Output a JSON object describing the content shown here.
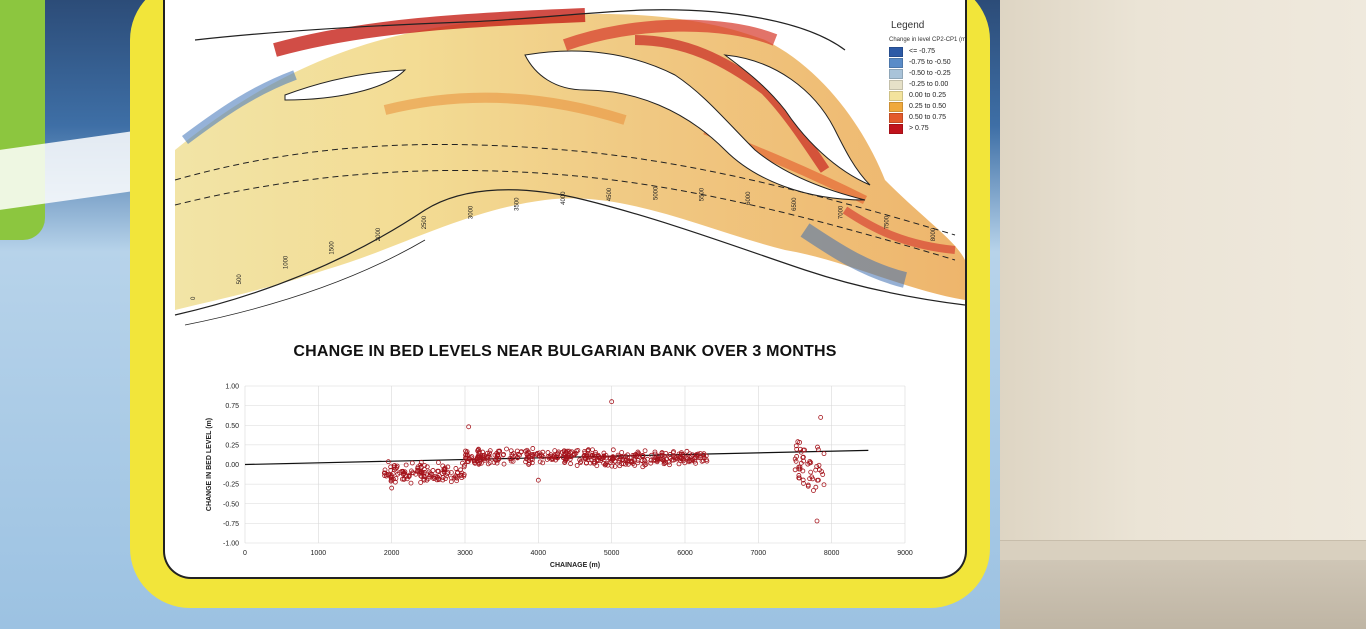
{
  "legend": {
    "title": "Legend",
    "subtitle": "Change in level CP2-CP1 (m)",
    "items": [
      {
        "label": "<= -0.75",
        "color": "#2c5aa6"
      },
      {
        "label": "-0.75 to -0.50",
        "color": "#5a8cc8"
      },
      {
        "label": "-0.50 to -0.25",
        "color": "#a9c3d9"
      },
      {
        "label": "-0.25 to 0.00",
        "color": "#e6e1c8"
      },
      {
        "label": "0.00 to 0.25",
        "color": "#f3e39d"
      },
      {
        "label": "0.25 to 0.50",
        "color": "#f0a93c"
      },
      {
        "label": "0.50 to 0.75",
        "color": "#e35a2b"
      },
      {
        "label": "> 0.75",
        "color": "#c1131c"
      }
    ]
  },
  "map_chainage_labels": [
    "0",
    "500",
    "1000",
    "1500",
    "2000",
    "2500",
    "3000",
    "3500",
    "4000",
    "4500",
    "5000",
    "5500",
    "6000",
    "6500",
    "7000",
    "7500",
    "8000"
  ],
  "chart_title": "CHANGE IN BED LEVELS NEAR BULGARIAN BANK OVER 3 MONTHS",
  "chart_data": {
    "type": "scatter",
    "xlabel": "CHAINAGE (m)",
    "ylabel": "CHANGE IN BED LEVEL (m)",
    "xlim": [
      0,
      9000
    ],
    "ylim": [
      -1.0,
      1.0
    ],
    "x_ticks": [
      "0",
      "1000",
      "2000",
      "3000",
      "4000",
      "5000",
      "6000",
      "7000",
      "8000",
      "9000"
    ],
    "y_ticks": [
      "1.00",
      "0.75",
      "0.50",
      "0.25",
      "0.00",
      "-0.25",
      "-0.50",
      "-0.75",
      "-1.00"
    ],
    "grid": true,
    "trend_line": {
      "x": [
        0,
        8500
      ],
      "y": [
        0.0,
        0.18
      ]
    },
    "clusters": [
      {
        "x_start": 1900,
        "x_end": 3000,
        "y_mean": -0.1,
        "y_spread": 0.15
      },
      {
        "x_start": 3000,
        "x_end": 4800,
        "y_mean": 0.1,
        "y_spread": 0.12
      },
      {
        "x_start": 4800,
        "x_end": 5600,
        "y_mean": 0.08,
        "y_spread": 0.12
      },
      {
        "x_start": 5600,
        "x_end": 6300,
        "y_mean": 0.08,
        "y_spread": 0.1
      },
      {
        "x_start": 7500,
        "x_end": 7900,
        "y_mean": 0.0,
        "y_spread": 0.35
      }
    ],
    "outliers": [
      [
        3050,
        0.48
      ],
      [
        5000,
        0.8
      ],
      [
        4000,
        -0.2
      ],
      [
        7800,
        -0.72
      ],
      [
        7850,
        0.6
      ],
      [
        2000,
        -0.3
      ]
    ],
    "series_color": "#a5141c"
  }
}
